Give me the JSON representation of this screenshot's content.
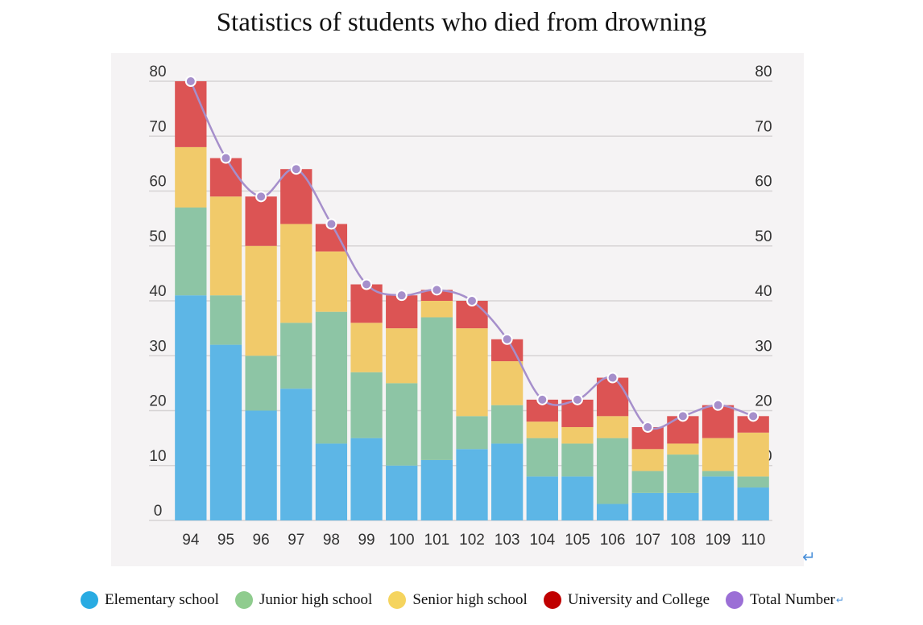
{
  "chart_data": {
    "type": "bar",
    "stacked": true,
    "title": "Statistics of students who died from drowning",
    "categories": [
      "94",
      "95",
      "96",
      "97",
      "98",
      "99",
      "100",
      "101",
      "102",
      "103",
      "104",
      "105",
      "106",
      "107",
      "108",
      "109",
      "110"
    ],
    "series": [
      {
        "name": "Elementary school",
        "color": "#5db6e6",
        "values": [
          41,
          32,
          20,
          24,
          14,
          15,
          10,
          11,
          13,
          14,
          8,
          8,
          3,
          5,
          5,
          8,
          6
        ]
      },
      {
        "name": "Junior high school",
        "color": "#8dc5a5",
        "values": [
          16,
          9,
          10,
          12,
          24,
          12,
          15,
          26,
          6,
          7,
          7,
          6,
          12,
          4,
          7,
          1,
          2
        ]
      },
      {
        "name": "Senior high school",
        "color": "#f1ca6a",
        "values": [
          11,
          18,
          20,
          18,
          11,
          9,
          10,
          3,
          16,
          8,
          3,
          3,
          4,
          4,
          2,
          6,
          8
        ]
      },
      {
        "name": "University and College",
        "color": "#dc5454",
        "values": [
          12,
          7,
          9,
          10,
          5,
          7,
          6,
          2,
          5,
          4,
          4,
          5,
          7,
          4,
          5,
          6,
          3
        ]
      }
    ],
    "total_series": {
      "name": "Total Number",
      "color": "#a68fcb",
      "values": [
        80,
        66,
        59,
        64,
        54,
        43,
        41,
        42,
        40,
        33,
        22,
        22,
        26,
        17,
        19,
        21,
        19
      ]
    },
    "yticks": [
      "0",
      "10",
      "20",
      "30",
      "40",
      "50",
      "60",
      "70",
      "80"
    ],
    "ylim": [
      0,
      80
    ],
    "grid": true,
    "legend_position": "bottom"
  },
  "legend": [
    {
      "label": "Elementary school",
      "color": "#29abe2"
    },
    {
      "label": "Junior high school",
      "color": "#8fcc8e"
    },
    {
      "label": "Senior high school",
      "color": "#f5d45e"
    },
    {
      "label": "University and College",
      "color": "#c00000"
    },
    {
      "label": "Total Number",
      "color": "#9b6fd6"
    }
  ],
  "marks": {
    "return_glyph": "↵"
  }
}
